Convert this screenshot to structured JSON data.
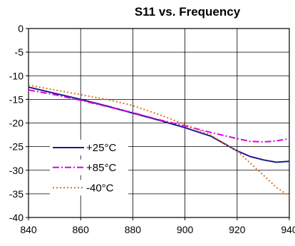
{
  "chart_data": {
    "type": "line",
    "title": "S11 vs. Frequency",
    "xlabel": "",
    "ylabel": "",
    "xlim": [
      840,
      940
    ],
    "ylim": [
      -40,
      0
    ],
    "x_ticks": [
      "840",
      "860",
      "880",
      "900",
      "920",
      "940"
    ],
    "y_ticks": [
      "0",
      "-5",
      "-10",
      "-15",
      "-20",
      "-25",
      "-30",
      "-35",
      "-40"
    ],
    "grid": true,
    "legend_position": "lower-left",
    "series": [
      {
        "name": "+25°C",
        "color": "#1a1a8c",
        "dash": "solid",
        "x": [
          840,
          850,
          860,
          870,
          880,
          890,
          900,
          910,
          920,
          925,
          930,
          935,
          940
        ],
        "y": [
          -12.4,
          -13.7,
          -15.0,
          -16.4,
          -17.9,
          -19.4,
          -21.0,
          -22.8,
          -25.9,
          -27.1,
          -27.8,
          -28.3,
          -28.1
        ]
      },
      {
        "name": "+85°C",
        "color": "#e000e0",
        "dash": "dashdot",
        "x": [
          840,
          850,
          860,
          870,
          880,
          890,
          900,
          910,
          920,
          925,
          930,
          935,
          940
        ],
        "y": [
          -13.0,
          -14.0,
          -15.2,
          -16.5,
          -17.8,
          -19.3,
          -20.6,
          -22.0,
          -23.3,
          -23.9,
          -24.0,
          -23.8,
          -23.3
        ]
      },
      {
        "name": "-40°C",
        "color": "#e07020",
        "dash": "dotted",
        "x": [
          840,
          850,
          860,
          870,
          880,
          890,
          900,
          910,
          920,
          925,
          930,
          935,
          940
        ],
        "y": [
          -12.0,
          -13.0,
          -14.0,
          -15.0,
          -16.3,
          -18.2,
          -20.3,
          -22.6,
          -25.9,
          -28.5,
          -31.0,
          -33.6,
          -35.5
        ]
      }
    ]
  }
}
